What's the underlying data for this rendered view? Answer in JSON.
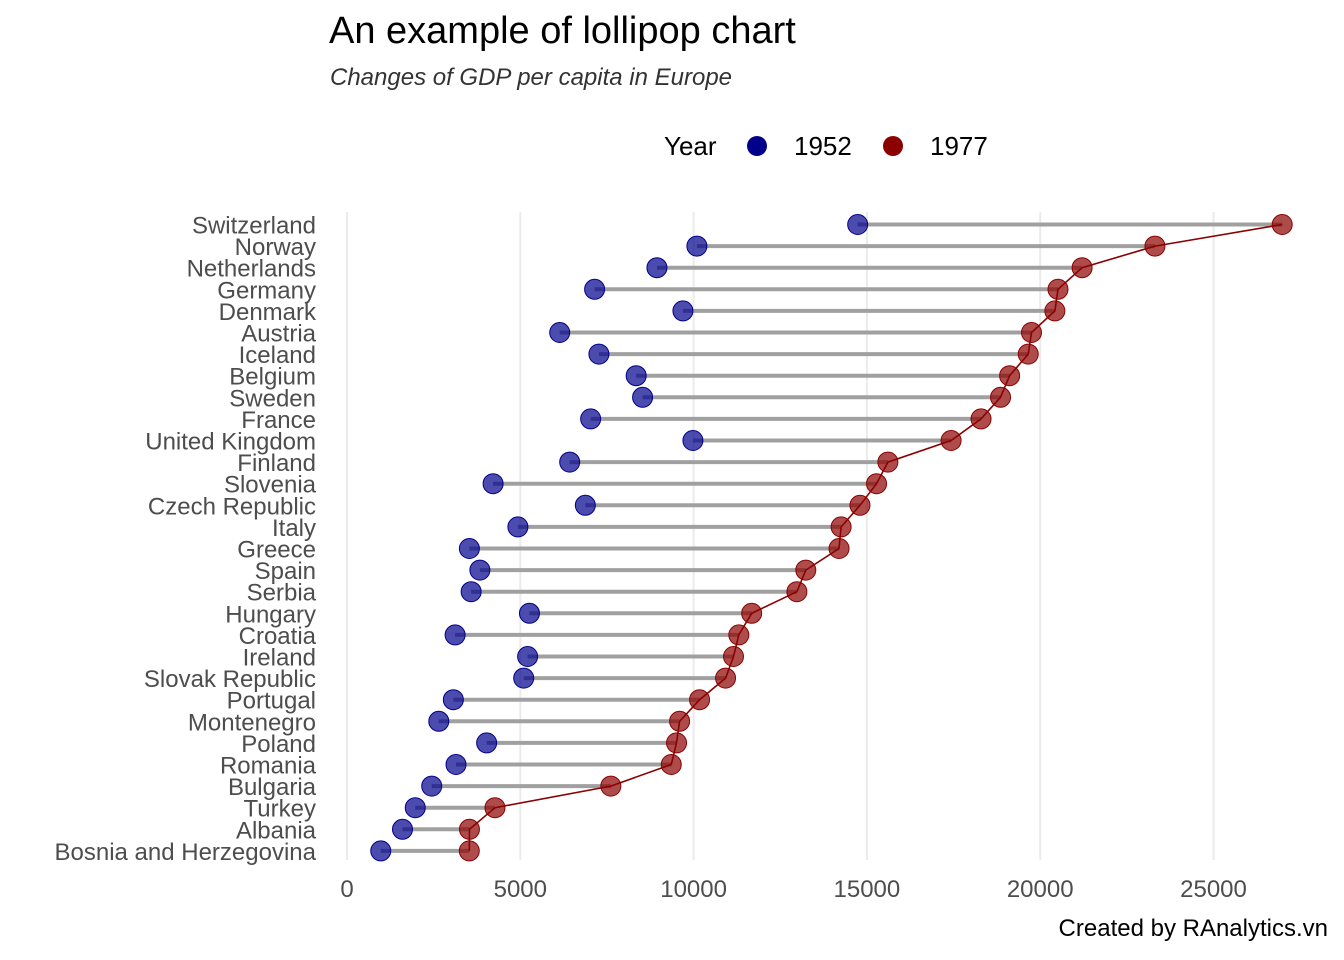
{
  "chart_data": {
    "type": "lollipop",
    "title": "An example of lollipop chart",
    "subtitle": "Changes of GDP per capita in Europe",
    "caption": "Created by RAnalytics.vn",
    "legend": {
      "title": "Year",
      "position": "top",
      "entries": [
        {
          "label": "1952",
          "color": "#00008b"
        },
        {
          "label": "1977",
          "color": "#8b0000"
        }
      ]
    },
    "xlim": [
      0,
      27000
    ],
    "x_ticks": [
      0,
      5000,
      10000,
      15000,
      20000,
      25000
    ],
    "x_tick_labels": [
      "0",
      "5000",
      "10000",
      "15000",
      "20000",
      "25000"
    ],
    "grid": "vertical-major",
    "segment_color": "#a0a0a0",
    "trend_line": "1977",
    "categories": [
      "Switzerland",
      "Norway",
      "Netherlands",
      "Germany",
      "Denmark",
      "Austria",
      "Iceland",
      "Belgium",
      "Sweden",
      "France",
      "United Kingdom",
      "Finland",
      "Slovenia",
      "Czech Republic",
      "Italy",
      "Greece",
      "Spain",
      "Serbia",
      "Hungary",
      "Croatia",
      "Ireland",
      "Slovak Republic",
      "Portugal",
      "Montenegro",
      "Poland",
      "Romania",
      "Bulgaria",
      "Turkey",
      "Albania",
      "Bosnia and Herzegovina"
    ],
    "series": [
      {
        "name": "1952",
        "color": "#00008b",
        "values": [
          14734,
          10095,
          8942,
          7144,
          9692,
          6137,
          7268,
          8343,
          8528,
          7030,
          9980,
          6425,
          4215,
          6876,
          4931,
          3531,
          3834,
          3582,
          5264,
          3119,
          5211,
          5098,
          3068,
          2648,
          4029,
          3145,
          2444,
          1969,
          1601,
          974
        ]
      },
      {
        "name": "1977",
        "color": "#8b0000",
        "values": [
          26982,
          23311,
          21209,
          20513,
          20423,
          19749,
          19655,
          19118,
          18856,
          18293,
          17429,
          15605,
          15278,
          14800,
          14256,
          14196,
          13237,
          12980,
          11675,
          11305,
          11151,
          10922,
          10172,
          9596,
          9508,
          9356,
          7612,
          4269,
          3533,
          3528
        ]
      }
    ]
  }
}
